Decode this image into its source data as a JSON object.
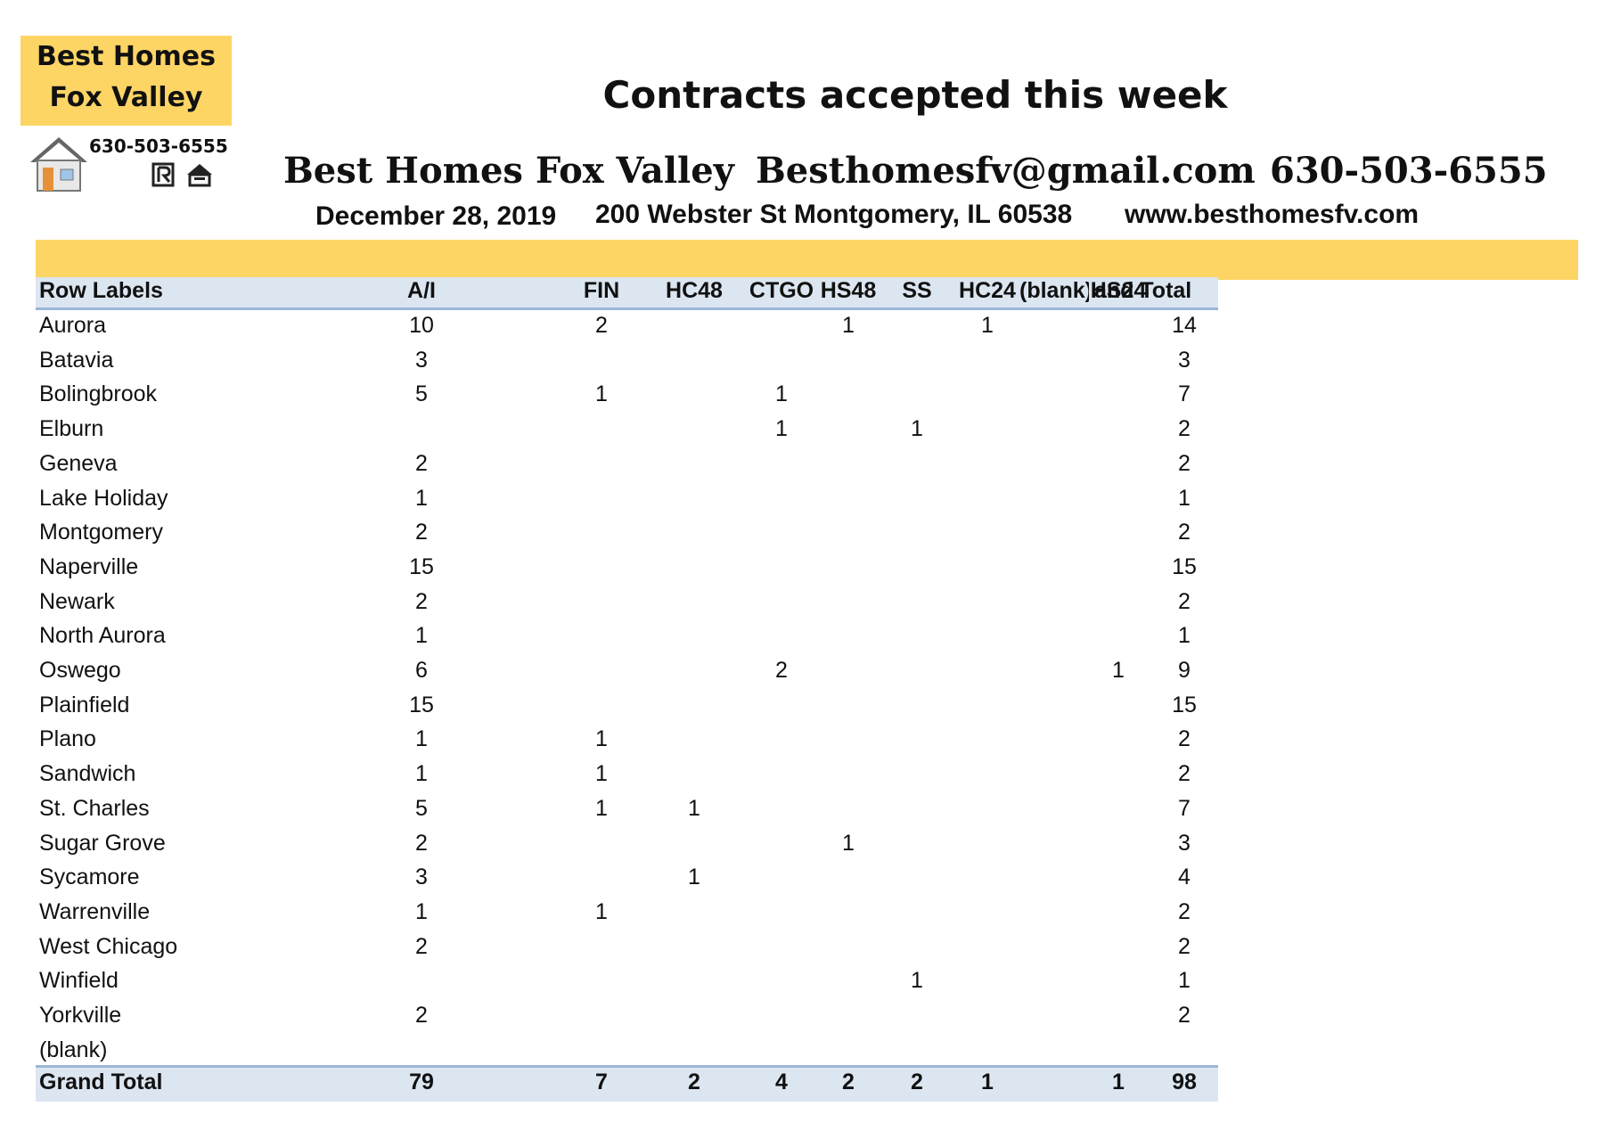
{
  "logo": {
    "name_line1": "Best Homes",
    "name_line2": "Fox Valley",
    "phone": "630-503-6555"
  },
  "header": {
    "title": "Contracts accepted this week",
    "company": "Best Homes Fox Valley",
    "email": "Besthomesfv@gmail.com",
    "phone": "630-503-6555",
    "date": "December 28, 2019",
    "address": "200 Webster St Montgomery, IL 60538",
    "website": "www.besthomesfv.com"
  },
  "table": {
    "columns": [
      "Row Labels",
      "A/I",
      "FIN",
      "HC48",
      "CTGO",
      "HS48",
      "SS",
      "HC24",
      "(blank)",
      "HS24",
      "and Total"
    ],
    "rows": [
      {
        "label": "Aurora",
        "values": [
          10,
          2,
          null,
          null,
          1,
          null,
          1,
          null,
          null,
          14
        ]
      },
      {
        "label": "Batavia",
        "values": [
          3,
          null,
          null,
          null,
          null,
          null,
          null,
          null,
          null,
          3
        ]
      },
      {
        "label": "Bolingbrook",
        "values": [
          5,
          1,
          null,
          1,
          null,
          null,
          null,
          null,
          null,
          7
        ]
      },
      {
        "label": "Elburn",
        "values": [
          null,
          null,
          null,
          1,
          null,
          1,
          null,
          null,
          null,
          2
        ]
      },
      {
        "label": "Geneva",
        "values": [
          2,
          null,
          null,
          null,
          null,
          null,
          null,
          null,
          null,
          2
        ]
      },
      {
        "label": "Lake Holiday",
        "values": [
          1,
          null,
          null,
          null,
          null,
          null,
          null,
          null,
          null,
          1
        ]
      },
      {
        "label": "Montgomery",
        "values": [
          2,
          null,
          null,
          null,
          null,
          null,
          null,
          null,
          null,
          2
        ]
      },
      {
        "label": "Naperville",
        "values": [
          15,
          null,
          null,
          null,
          null,
          null,
          null,
          null,
          null,
          15
        ]
      },
      {
        "label": "Newark",
        "values": [
          2,
          null,
          null,
          null,
          null,
          null,
          null,
          null,
          null,
          2
        ]
      },
      {
        "label": "North Aurora",
        "values": [
          1,
          null,
          null,
          null,
          null,
          null,
          null,
          null,
          null,
          1
        ]
      },
      {
        "label": "Oswego",
        "values": [
          6,
          null,
          null,
          2,
          null,
          null,
          null,
          null,
          1,
          9
        ]
      },
      {
        "label": "Plainfield",
        "values": [
          15,
          null,
          null,
          null,
          null,
          null,
          null,
          null,
          null,
          15
        ]
      },
      {
        "label": "Plano",
        "values": [
          1,
          1,
          null,
          null,
          null,
          null,
          null,
          null,
          null,
          2
        ]
      },
      {
        "label": "Sandwich",
        "values": [
          1,
          1,
          null,
          null,
          null,
          null,
          null,
          null,
          null,
          2
        ]
      },
      {
        "label": "St. Charles",
        "values": [
          5,
          1,
          1,
          null,
          null,
          null,
          null,
          null,
          null,
          7
        ]
      },
      {
        "label": "Sugar Grove",
        "values": [
          2,
          null,
          null,
          null,
          1,
          null,
          null,
          null,
          null,
          3
        ]
      },
      {
        "label": "Sycamore",
        "values": [
          3,
          null,
          1,
          null,
          null,
          null,
          null,
          null,
          null,
          4
        ]
      },
      {
        "label": "Warrenville",
        "values": [
          1,
          1,
          null,
          null,
          null,
          null,
          null,
          null,
          null,
          2
        ]
      },
      {
        "label": "West Chicago",
        "values": [
          2,
          null,
          null,
          null,
          null,
          null,
          null,
          null,
          null,
          2
        ]
      },
      {
        "label": "Winfield",
        "values": [
          null,
          null,
          null,
          null,
          null,
          1,
          null,
          null,
          null,
          1
        ]
      },
      {
        "label": "Yorkville",
        "values": [
          2,
          null,
          null,
          null,
          null,
          null,
          null,
          null,
          null,
          2
        ]
      },
      {
        "label": "(blank)",
        "values": [
          null,
          null,
          null,
          null,
          null,
          null,
          null,
          null,
          null,
          null
        ]
      }
    ],
    "total": {
      "label": "Grand Total",
      "values": [
        79,
        7,
        2,
        4,
        2,
        2,
        1,
        null,
        1,
        98
      ]
    }
  }
}
